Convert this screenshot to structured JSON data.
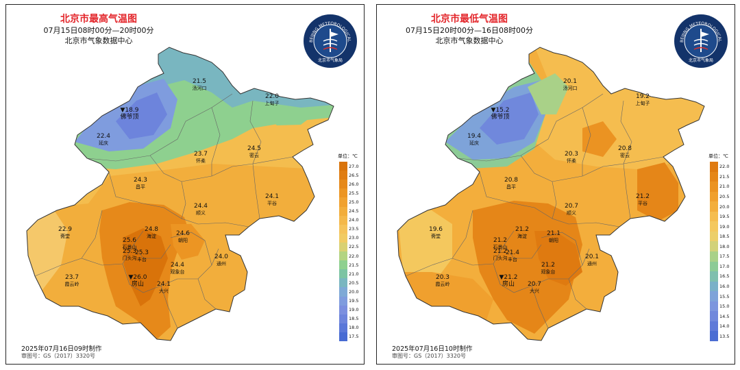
{
  "unit_label": "单位：℃",
  "panels": [
    {
      "id": "max",
      "title": "北京市最高气温图",
      "period": "07月15日08时00分—20时00分",
      "agency": "北京市气象数据中心",
      "made": "2025年07月16日09时制作",
      "approval": "审图号：GS（2017）3320号",
      "logo_text": "BEIJING METEOROLOGICAL SERVICE",
      "logo_cn": "北京市气象局",
      "legend": {
        "ticks": [
          "27.0",
          "26.5",
          "26.0",
          "25.5",
          "25.0",
          "24.5",
          "24.0",
          "23.5",
          "23.0",
          "22.5",
          "22.0",
          "21.5",
          "21.0",
          "20.5",
          "20.0",
          "19.5",
          "19.0",
          "18.5",
          "18.0",
          "17.5"
        ],
        "colors": [
          "#d9730a",
          "#e07d12",
          "#e6891a",
          "#ec9523",
          "#f0a12f",
          "#f2ad3b",
          "#f4b84a",
          "#f5c35a",
          "#f1cb63",
          "#d9d173",
          "#b3d482",
          "#8ed08f",
          "#7cc4a3",
          "#79b6c0",
          "#7ea9d6",
          "#7f9cde",
          "#7b8fdf",
          "#6d84dc",
          "#5a77d8",
          "#486bd3"
        ]
      },
      "stations": [
        {
          "name": "汤河口",
          "value": "21.5"
        },
        {
          "name": "上甸子",
          "value": "22.0"
        },
        {
          "name": "佛爷顶",
          "value": "18.9"
        },
        {
          "name": "延庆",
          "value": "22.4"
        },
        {
          "name": "怀柔",
          "value": "23.7"
        },
        {
          "name": "密云",
          "value": "24.5"
        },
        {
          "name": "昌平",
          "value": "24.3"
        },
        {
          "name": "平谷",
          "value": "24.1"
        },
        {
          "name": "顺义",
          "value": "24.4"
        },
        {
          "name": "斋堂",
          "value": "22.9"
        },
        {
          "name": "海淀",
          "value": "24.8"
        },
        {
          "name": "石景山",
          "value": "25.6"
        },
        {
          "name": "朝阳",
          "value": "24.6"
        },
        {
          "name": "门头沟",
          "value": "25.3"
        },
        {
          "name": "丰台",
          "value": "25.3"
        },
        {
          "name": "观象台",
          "value": "24.4"
        },
        {
          "name": "通州",
          "value": "24.0"
        },
        {
          "name": "霞云岭",
          "value": "23.7"
        },
        {
          "name": "房山",
          "value": "26.0"
        },
        {
          "name": "大兴",
          "value": "24.1"
        }
      ]
    },
    {
      "id": "min",
      "title": "北京市最低气温图",
      "period": "07月15日20时00分—16日08时00分",
      "agency": "北京市气象数据中心",
      "made": "2025年07月16日10时制作",
      "approval": "审图号：GS（2017）3320号",
      "logo_text": "BEIJING METEOROLOGICAL SERVICE",
      "logo_cn": "北京市气象局",
      "legend": {
        "ticks": [
          "22.0",
          "21.5",
          "21.0",
          "20.5",
          "20.0",
          "19.5",
          "19.0",
          "18.5",
          "18.0",
          "17.5",
          "17.0",
          "16.5",
          "16.0",
          "15.5",
          "15.0",
          "14.5",
          "14.0",
          "13.5"
        ],
        "colors": [
          "#df7a10",
          "#e58618",
          "#eb9322",
          "#f0a02e",
          "#f3ae3c",
          "#f5bd4f",
          "#f4c85e",
          "#eccf6a",
          "#d2d27a",
          "#a9d188",
          "#8ccb96",
          "#7fbfae",
          "#7ab1c8",
          "#7ea3d9",
          "#7c96de",
          "#7088dc",
          "#5f7ad8",
          "#4b6dd3"
        ]
      },
      "stations": [
        {
          "name": "汤河口",
          "value": "20.1"
        },
        {
          "name": "上甸子",
          "value": "19.2"
        },
        {
          "name": "佛爷顶",
          "value": "15.2"
        },
        {
          "name": "延庆",
          "value": "19.4"
        },
        {
          "name": "怀柔",
          "value": "20.3"
        },
        {
          "name": "密云",
          "value": "20.8"
        },
        {
          "name": "昌平",
          "value": "20.8"
        },
        {
          "name": "平谷",
          "value": "21.2"
        },
        {
          "name": "顺义",
          "value": "20.7"
        },
        {
          "name": "斋堂",
          "value": "19.6"
        },
        {
          "name": "海淀",
          "value": "21.2"
        },
        {
          "name": "石景山",
          "value": "21.2"
        },
        {
          "name": "朝阳",
          "value": "21.1"
        },
        {
          "name": "门头沟",
          "value": "21.2"
        },
        {
          "name": "丰台",
          "value": "21.4"
        },
        {
          "name": "观象台",
          "value": "21.2"
        },
        {
          "name": "通州",
          "value": "20.1"
        },
        {
          "name": "霞云岭",
          "value": "20.3"
        },
        {
          "name": "房山",
          "value": "21.2"
        },
        {
          "name": "大兴",
          "value": "20.7"
        }
      ]
    }
  ]
}
